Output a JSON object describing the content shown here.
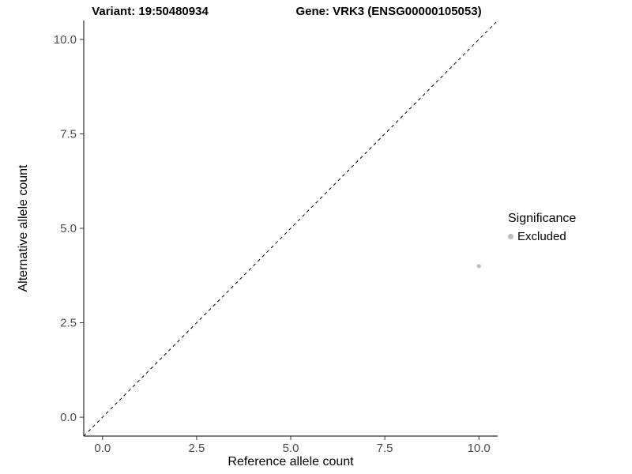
{
  "titles": {
    "variant": "Variant: 19:50480934",
    "gene": "Gene: VRK3 (ENSG00000105053)"
  },
  "chart_data": {
    "type": "scatter",
    "title_left": "Variant: 19:50480934",
    "title_right": "Gene: VRK3 (ENSG00000105053)",
    "xlabel": "Reference allele count",
    "ylabel": "Alternative allele count",
    "xlim": [
      -0.5,
      10.5
    ],
    "ylim": [
      -0.5,
      10.5
    ],
    "x_ticks": [
      0.0,
      2.5,
      5.0,
      7.5,
      10.0
    ],
    "x_tick_labels": [
      "0.0",
      "2.5",
      "5.0",
      "7.5",
      "10.0"
    ],
    "y_ticks": [
      0.0,
      2.5,
      5.0,
      7.5,
      10.0
    ],
    "y_tick_labels": [
      "0.0",
      "2.5",
      "5.0",
      "7.5",
      "10.0"
    ],
    "grid": false,
    "reference_line": {
      "type": "identity",
      "style": "dashed",
      "color": "#000000",
      "from": [
        -0.5,
        -0.5
      ],
      "to": [
        10.5,
        10.5
      ]
    },
    "series": [
      {
        "name": "Excluded",
        "color": "#bdbdbd",
        "points": [
          {
            "x": 10,
            "y": 4
          }
        ]
      }
    ],
    "legend": {
      "title": "Significance",
      "position": "right",
      "entries": [
        {
          "label": "Excluded",
          "color": "#bdbdbd"
        }
      ]
    }
  },
  "colors": {
    "axis_line": "#000000",
    "tick": "#333333",
    "tick_label": "#4d4d4d",
    "point": "#bdbdbd",
    "background": "#ffffff"
  }
}
